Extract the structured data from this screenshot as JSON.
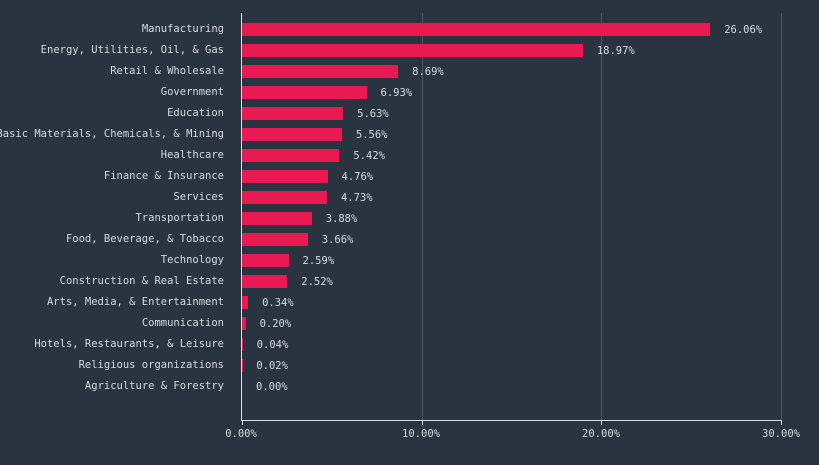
{
  "colors": {
    "background": "#2a3340",
    "bar": "#e91a51",
    "text": "#d7dade",
    "gridline": "#4e5665",
    "axis": "#dcdee2"
  },
  "chart_data": {
    "type": "bar",
    "orientation": "horizontal",
    "title": "",
    "xlabel": "",
    "ylabel": "",
    "xlim": [
      0,
      30
    ],
    "grid": true,
    "categories": [
      "Manufacturing",
      "Energy, Utilities, Oil, & Gas",
      "Retail & Wholesale",
      "Government",
      "Education",
      "Basic Materials, Chemicals, & Mining",
      "Healthcare",
      "Finance & Insurance",
      "Services",
      "Transportation",
      "Food, Beverage, & Tobacco",
      "Technology",
      "Construction & Real Estate",
      "Arts, Media, & Entertainment",
      "Communication",
      "Hotels, Restaurants, & Leisure",
      "Religious organizations",
      "Agriculture & Forestry"
    ],
    "values": [
      26.06,
      18.97,
      8.69,
      6.93,
      5.63,
      5.56,
      5.42,
      4.76,
      4.73,
      3.88,
      3.66,
      2.59,
      2.52,
      0.34,
      0.2,
      0.04,
      0.02,
      0.0
    ],
    "value_label_suffix": "%",
    "x_ticks": [
      0,
      10,
      20,
      30
    ],
    "x_tick_labels": [
      "0.00%",
      "10.00%",
      "20.00%",
      "30.00%"
    ]
  }
}
